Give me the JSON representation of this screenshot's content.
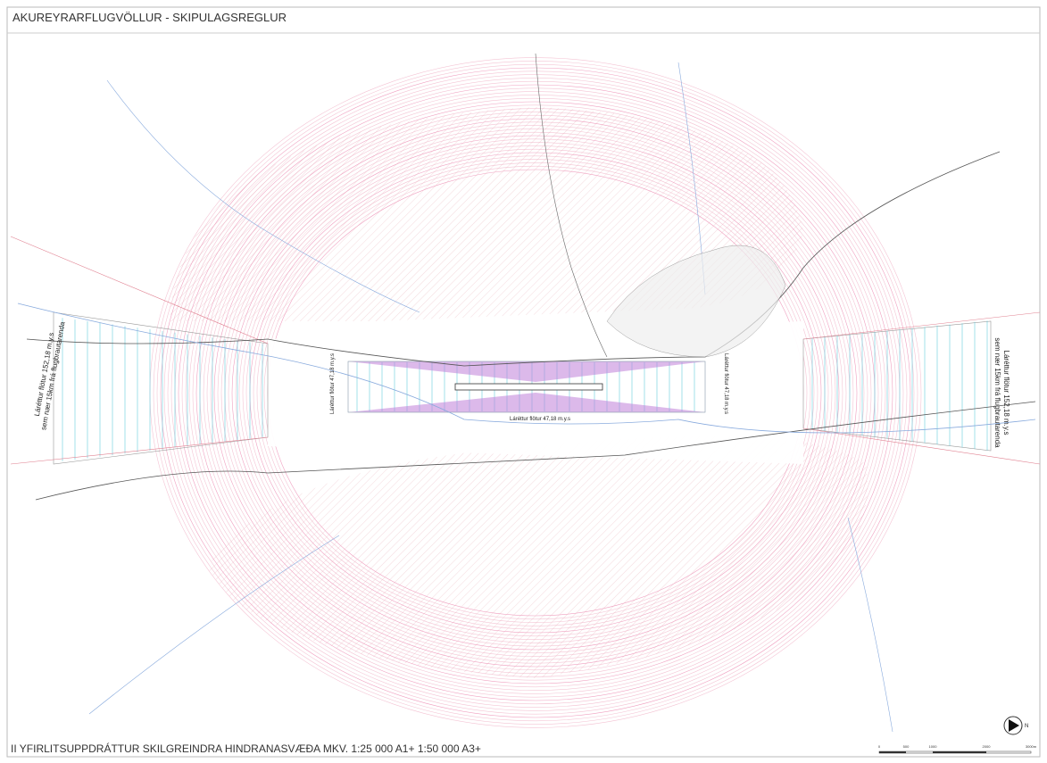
{
  "header": {
    "title": "AKUREYRARFLUGVÖLLUR - SKIPULAGSREGLUR"
  },
  "map": {
    "left_surface": {
      "line1": "Láréttur flötur 152,18 m.y.s",
      "line2": "sem nær 15km frá flugbrautarenda"
    },
    "right_surface": {
      "line1": "Láréttur flötur 152,18 m.y.s",
      "line2": "sem nær 15km frá flugbrautarenda"
    },
    "inner_left": "Láréttur flötur 47,18 m.y.s",
    "inner_right": "Láréttur flötur 47,18 m.y.s",
    "inner_bottom": "Láréttur flötur 47,18 m.y.s",
    "north": "N",
    "scale_labels": [
      "0",
      "500",
      "1000",
      "2000",
      "3000m"
    ]
  },
  "footer": {
    "title": "II YFIRLITSUPPDRÁTTUR SKILGREINDRA HINDRANASVÆÐA MKV. 1:25 000 A1+   1:50 000 A3+"
  }
}
